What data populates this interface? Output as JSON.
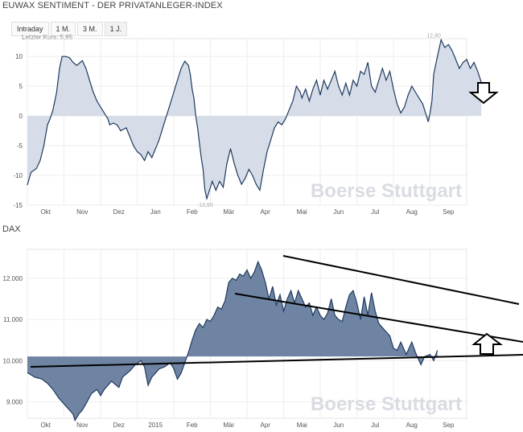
{
  "header": {
    "title": "EUWAX SENTIMENT - DER PRIVATANLEGER-INDEX"
  },
  "tabs": [
    {
      "label": "Intraday",
      "active": false
    },
    {
      "label": "1 M.",
      "active": false
    },
    {
      "label": "3 M.",
      "active": false
    },
    {
      "label": "1 J.",
      "active": true
    }
  ],
  "last_price": "Letzter Kurs: 5,65",
  "watermark": "Boerse Stuttgart",
  "colors": {
    "line": "#1f3a5f",
    "fill": "#d6dde8",
    "dax_fill": "#6f84a3",
    "trend": "#000000"
  },
  "chart_data": [
    {
      "type": "area",
      "title": "",
      "xticks": [
        "Okt",
        "Nov",
        "Dez",
        "Jan",
        "Feb",
        "Mär",
        "Apr",
        "Mai",
        "Jun",
        "Jul",
        "Aug",
        "Sep"
      ],
      "yticks": [
        "10",
        "5",
        "0",
        "-5",
        "-10",
        "-15"
      ],
      "ylim": [
        -15,
        13
      ],
      "baseline": 0,
      "annotations": [
        {
          "label": "12,80",
          "x": 11.1,
          "y": 12.8
        },
        {
          "label": "-13,90",
          "x": 4.85,
          "y": -13.9
        }
      ],
      "series": [
        {
          "values": [
            [
              0.0,
              -11.6
            ],
            [
              0.1,
              -9.5
            ],
            [
              0.25,
              -8.8
            ],
            [
              0.35,
              -7.5
            ],
            [
              0.45,
              -5.0
            ],
            [
              0.5,
              -3.2
            ],
            [
              0.55,
              -1.5
            ],
            [
              0.62,
              -0.5
            ],
            [
              0.7,
              1.0
            ],
            [
              0.8,
              4.0
            ],
            [
              0.88,
              8.0
            ],
            [
              0.95,
              10.0
            ],
            [
              1.05,
              10.0
            ],
            [
              1.15,
              9.8
            ],
            [
              1.25,
              9.0
            ],
            [
              1.35,
              8.5
            ],
            [
              1.5,
              9.3
            ],
            [
              1.6,
              8.0
            ],
            [
              1.7,
              6.0
            ],
            [
              1.8,
              4.0
            ],
            [
              1.9,
              2.5
            ],
            [
              2.0,
              1.5
            ],
            [
              2.1,
              0.5
            ],
            [
              2.2,
              -0.5
            ],
            [
              2.25,
              -1.5
            ],
            [
              2.35,
              -1.2
            ],
            [
              2.45,
              -1.5
            ],
            [
              2.55,
              -2.5
            ],
            [
              2.7,
              -2.0
            ],
            [
              2.8,
              -3.5
            ],
            [
              2.9,
              -5.0
            ],
            [
              3.0,
              -6.0
            ],
            [
              3.1,
              -6.5
            ],
            [
              3.2,
              -7.5
            ],
            [
              3.3,
              -6.0
            ],
            [
              3.4,
              -7.0
            ],
            [
              3.5,
              -5.5
            ],
            [
              3.6,
              -4.0
            ],
            [
              3.7,
              -2.0
            ],
            [
              3.8,
              0.0
            ],
            [
              3.9,
              2.0
            ],
            [
              4.0,
              4.0
            ],
            [
              4.1,
              6.0
            ],
            [
              4.2,
              8.0
            ],
            [
              4.3,
              9.2
            ],
            [
              4.4,
              8.5
            ],
            [
              4.45,
              7.0
            ],
            [
              4.5,
              4.5
            ],
            [
              4.55,
              3.0
            ],
            [
              4.6,
              0.0
            ],
            [
              4.65,
              -2.0
            ],
            [
              4.7,
              -4.5
            ],
            [
              4.75,
              -7.0
            ],
            [
              4.8,
              -9.0
            ],
            [
              4.85,
              -12.5
            ],
            [
              4.9,
              -13.9
            ],
            [
              4.95,
              -13.0
            ],
            [
              5.05,
              -11.0
            ],
            [
              5.15,
              -12.5
            ],
            [
              5.25,
              -11.0
            ],
            [
              5.35,
              -12.0
            ],
            [
              5.45,
              -8.0
            ],
            [
              5.55,
              -5.5
            ],
            [
              5.65,
              -8.0
            ],
            [
              5.75,
              -10.0
            ],
            [
              5.85,
              -11.5
            ],
            [
              5.95,
              -10.5
            ],
            [
              6.05,
              -9.0
            ],
            [
              6.15,
              -10.0
            ],
            [
              6.25,
              -11.5
            ],
            [
              6.35,
              -12.5
            ],
            [
              6.45,
              -9.0
            ],
            [
              6.55,
              -6.0
            ],
            [
              6.65,
              -4.0
            ],
            [
              6.75,
              -2.0
            ],
            [
              6.85,
              -1.0
            ],
            [
              6.95,
              -1.5
            ],
            [
              7.05,
              -0.5
            ],
            [
              7.15,
              1.0
            ],
            [
              7.25,
              2.5
            ],
            [
              7.35,
              5.0
            ],
            [
              7.45,
              4.0
            ],
            [
              7.5,
              3.0
            ],
            [
              7.6,
              4.5
            ],
            [
              7.7,
              2.5
            ],
            [
              7.8,
              4.5
            ],
            [
              7.9,
              6.0
            ],
            [
              8.0,
              3.5
            ],
            [
              8.1,
              6.0
            ],
            [
              8.2,
              4.5
            ],
            [
              8.3,
              6.0
            ],
            [
              8.4,
              7.5
            ],
            [
              8.5,
              5.0
            ],
            [
              8.6,
              3.5
            ],
            [
              8.7,
              5.5
            ],
            [
              8.8,
              3.5
            ],
            [
              8.9,
              6.0
            ],
            [
              9.0,
              5.0
            ],
            [
              9.1,
              7.5
            ],
            [
              9.2,
              7.0
            ],
            [
              9.3,
              9.0
            ],
            [
              9.4,
              5.0
            ],
            [
              9.5,
              4.0
            ],
            [
              9.6,
              6.0
            ],
            [
              9.7,
              8.0
            ],
            [
              9.8,
              6.0
            ],
            [
              9.9,
              7.5
            ],
            [
              10.0,
              4.5
            ],
            [
              10.1,
              2.0
            ],
            [
              10.2,
              0.5
            ],
            [
              10.3,
              1.5
            ],
            [
              10.4,
              3.5
            ],
            [
              10.5,
              5.0
            ],
            [
              10.6,
              4.0
            ],
            [
              10.7,
              3.0
            ],
            [
              10.8,
              2.0
            ],
            [
              10.9,
              0.0
            ],
            [
              10.95,
              -1.0
            ],
            [
              11.0,
              0.5
            ],
            [
              11.05,
              2.5
            ],
            [
              11.1,
              7.0
            ],
            [
              11.2,
              10.0
            ],
            [
              11.3,
              12.8
            ],
            [
              11.4,
              11.5
            ],
            [
              11.5,
              12.0
            ],
            [
              11.6,
              11.0
            ],
            [
              11.7,
              9.5
            ],
            [
              11.8,
              8.0
            ],
            [
              11.9,
              9.0
            ],
            [
              12.0,
              9.5
            ],
            [
              12.1,
              8.0
            ],
            [
              12.2,
              9.0
            ],
            [
              12.3,
              7.5
            ],
            [
              12.4,
              5.65
            ]
          ]
        }
      ]
    },
    {
      "type": "area",
      "title": "DAX",
      "xticks": [
        "Okt",
        "Nov",
        "Dez",
        "2015",
        "Feb",
        "Mär",
        "Apr",
        "Mai",
        "Jun",
        "Jul",
        "Aug",
        "Sep"
      ],
      "yticks": [
        "12.000",
        "11.000",
        "10.000",
        "9.000"
      ],
      "ylim": [
        8.6,
        12.7
      ],
      "baseline": 10.1,
      "series": [
        {
          "values": [
            [
              0.0,
              9.71
            ],
            [
              0.2,
              9.6
            ],
            [
              0.4,
              9.55
            ],
            [
              0.55,
              9.45
            ],
            [
              0.7,
              9.3
            ],
            [
              0.85,
              9.1
            ],
            [
              1.0,
              8.95
            ],
            [
              1.1,
              8.85
            ],
            [
              1.25,
              8.7
            ],
            [
              1.3,
              8.55
            ],
            [
              1.4,
              8.7
            ],
            [
              1.5,
              8.8
            ],
            [
              1.6,
              8.95
            ],
            [
              1.75,
              9.2
            ],
            [
              1.9,
              9.3
            ],
            [
              2.0,
              9.15
            ],
            [
              2.1,
              9.3
            ],
            [
              2.2,
              9.4
            ],
            [
              2.3,
              9.5
            ],
            [
              2.5,
              9.35
            ],
            [
              2.6,
              9.6
            ],
            [
              2.8,
              9.75
            ],
            [
              2.95,
              9.9
            ],
            [
              3.1,
              10.0
            ],
            [
              3.2,
              9.85
            ],
            [
              3.3,
              9.4
            ],
            [
              3.4,
              9.6
            ],
            [
              3.5,
              9.7
            ],
            [
              3.6,
              9.8
            ],
            [
              3.75,
              9.85
            ],
            [
              3.9,
              9.95
            ],
            [
              4.0,
              9.8
            ],
            [
              4.1,
              9.55
            ],
            [
              4.2,
              9.7
            ],
            [
              4.3,
              9.95
            ],
            [
              4.4,
              10.2
            ],
            [
              4.5,
              10.5
            ],
            [
              4.6,
              10.75
            ],
            [
              4.7,
              10.9
            ],
            [
              4.8,
              10.8
            ],
            [
              4.9,
              11.0
            ],
            [
              5.0,
              10.95
            ],
            [
              5.1,
              11.1
            ],
            [
              5.2,
              11.3
            ],
            [
              5.3,
              11.25
            ],
            [
              5.4,
              11.45
            ],
            [
              5.5,
              11.9
            ],
            [
              5.6,
              12.0
            ],
            [
              5.7,
              11.95
            ],
            [
              5.8,
              12.1
            ],
            [
              5.9,
              12.05
            ],
            [
              6.0,
              12.2
            ],
            [
              6.1,
              12.0
            ],
            [
              6.2,
              12.15
            ],
            [
              6.3,
              12.4
            ],
            [
              6.4,
              12.2
            ],
            [
              6.5,
              11.9
            ],
            [
              6.6,
              11.5
            ],
            [
              6.7,
              11.8
            ],
            [
              6.8,
              11.35
            ],
            [
              6.9,
              11.6
            ],
            [
              7.0,
              11.2
            ],
            [
              7.1,
              11.5
            ],
            [
              7.2,
              11.7
            ],
            [
              7.3,
              11.4
            ],
            [
              7.4,
              11.7
            ],
            [
              7.5,
              11.5
            ],
            [
              7.6,
              11.3
            ],
            [
              7.7,
              11.4
            ],
            [
              7.8,
              11.1
            ],
            [
              7.9,
              11.3
            ],
            [
              8.0,
              11.1
            ],
            [
              8.1,
              11.0
            ],
            [
              8.2,
              11.15
            ],
            [
              8.3,
              11.5
            ],
            [
              8.4,
              11.1
            ],
            [
              8.5,
              11.0
            ],
            [
              8.6,
              10.95
            ],
            [
              8.7,
              11.3
            ],
            [
              8.8,
              11.6
            ],
            [
              8.9,
              11.7
            ],
            [
              9.0,
              11.4
            ],
            [
              9.1,
              11.0
            ],
            [
              9.2,
              11.55
            ],
            [
              9.3,
              11.1
            ],
            [
              9.4,
              11.65
            ],
            [
              9.5,
              11.2
            ],
            [
              9.6,
              10.9
            ],
            [
              9.7,
              10.8
            ],
            [
              9.8,
              10.7
            ],
            [
              9.9,
              10.6
            ],
            [
              10.0,
              10.3
            ],
            [
              10.1,
              10.25
            ],
            [
              10.2,
              10.45
            ],
            [
              10.35,
              10.15
            ],
            [
              10.5,
              10.45
            ],
            [
              10.6,
              10.2
            ],
            [
              10.75,
              9.9
            ],
            [
              10.85,
              10.1
            ],
            [
              11.0,
              10.15
            ],
            [
              11.1,
              10.0
            ],
            [
              11.2,
              10.25
            ]
          ]
        }
      ]
    }
  ]
}
